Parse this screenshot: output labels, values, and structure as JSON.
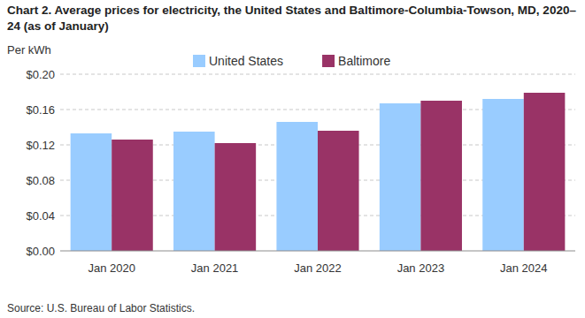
{
  "chart_data": {
    "type": "bar",
    "title": "Chart 2. Average prices for electricity, the United States and Baltimore-Columbia-Towson, MD, 2020–24 (as of January)",
    "y_label": "Per kWh",
    "source": "Source: U.S. Bureau of Labor Statistics.",
    "categories": [
      "Jan 2020",
      "Jan 2021",
      "Jan 2022",
      "Jan 2023",
      "Jan 2024"
    ],
    "series": [
      {
        "name": "United States",
        "color": "#99ccff",
        "values": [
          0.133,
          0.135,
          0.146,
          0.167,
          0.172
        ]
      },
      {
        "name": "Baltimore",
        "color": "#993366",
        "values": [
          0.126,
          0.122,
          0.136,
          0.17,
          0.179
        ]
      }
    ],
    "ylim": [
      0,
      0.2
    ],
    "yticks": [
      {
        "value": 0,
        "label": "$0.00"
      },
      {
        "value": 0.04,
        "label": "$0.04"
      },
      {
        "value": 0.08,
        "label": "$0.08"
      },
      {
        "value": 0.12,
        "label": "$0.12"
      },
      {
        "value": 0.16,
        "label": "$0.16"
      },
      {
        "value": 0.2,
        "label": "$0.20"
      }
    ],
    "grid": true,
    "legend": "top"
  }
}
